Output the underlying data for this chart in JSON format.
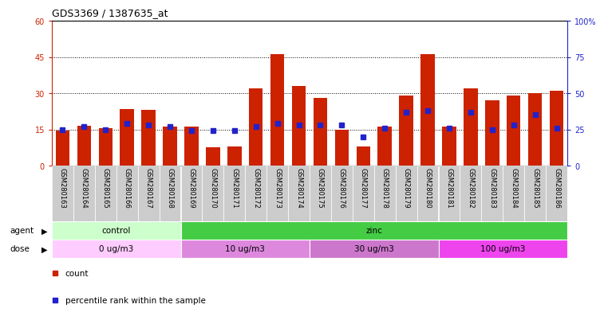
{
  "title": "GDS3369 / 1387635_at",
  "samples": [
    "GSM280163",
    "GSM280164",
    "GSM280165",
    "GSM280166",
    "GSM280167",
    "GSM280168",
    "GSM280169",
    "GSM280170",
    "GSM280171",
    "GSM280172",
    "GSM280173",
    "GSM280174",
    "GSM280175",
    "GSM280176",
    "GSM280177",
    "GSM280178",
    "GSM280179",
    "GSM280180",
    "GSM280181",
    "GSM280182",
    "GSM280183",
    "GSM280184",
    "GSM280185",
    "GSM280186"
  ],
  "counts": [
    14.5,
    16.5,
    15.5,
    23.5,
    23.0,
    16.0,
    16.0,
    7.5,
    8.0,
    32.0,
    46.0,
    33.0,
    28.0,
    15.0,
    8.0,
    16.0,
    29.0,
    46.0,
    16.0,
    32.0,
    27.0,
    29.0,
    30.0,
    31.0
  ],
  "percentile": [
    25,
    27,
    25,
    29,
    28,
    27,
    24,
    24,
    24,
    27,
    29,
    28,
    28,
    28,
    20,
    26,
    37,
    38,
    26,
    37,
    25,
    28,
    35,
    26
  ],
  "bar_color": "#cc2200",
  "dot_color": "#2222cc",
  "left_ylim": [
    0,
    60
  ],
  "right_ylim": [
    0,
    100
  ],
  "left_yticks": [
    0,
    15,
    30,
    45,
    60
  ],
  "right_yticks": [
    0,
    25,
    50,
    75,
    100
  ],
  "left_yticklabels": [
    "0",
    "15",
    "30",
    "45",
    "60"
  ],
  "right_yticklabels": [
    "0",
    "25",
    "50",
    "75",
    "100%"
  ],
  "agent_groups": [
    {
      "label": "control",
      "start": 0,
      "end": 5,
      "color": "#ccffcc"
    },
    {
      "label": "zinc",
      "start": 6,
      "end": 23,
      "color": "#44cc44"
    }
  ],
  "dose_groups": [
    {
      "label": "0 ug/m3",
      "start": 0,
      "end": 5,
      "color": "#ffccff"
    },
    {
      "label": "10 ug/m3",
      "start": 6,
      "end": 11,
      "color": "#dd88dd"
    },
    {
      "label": "30 ug/m3",
      "start": 12,
      "end": 17,
      "color": "#cc77cc"
    },
    {
      "label": "100 ug/m3",
      "start": 18,
      "end": 23,
      "color": "#ee44ee"
    }
  ],
  "bg_color": "#ffffff",
  "tick_bg_color": "#cccccc",
  "left_axis_color": "#cc2200",
  "right_axis_color": "#2222cc"
}
